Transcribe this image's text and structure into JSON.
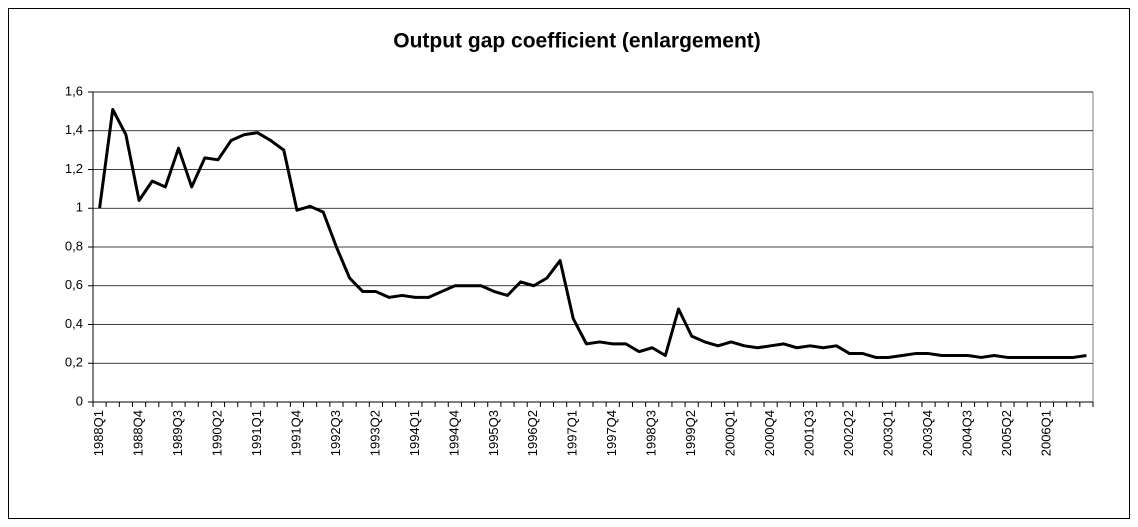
{
  "chart_data": {
    "type": "line",
    "title": "Output gap coefficient (enlargement)",
    "categories": [
      "1988Q1",
      null,
      null,
      "1988Q4",
      null,
      null,
      "1989Q3",
      null,
      null,
      "1990Q2",
      null,
      null,
      "1991Q1",
      null,
      null,
      "1991Q4",
      null,
      null,
      "1992Q3",
      null,
      null,
      "1993Q2",
      null,
      null,
      "1994Q1",
      null,
      null,
      "1994Q4",
      null,
      null,
      "1995Q3",
      null,
      null,
      "1996Q2",
      null,
      null,
      "1997Q1",
      null,
      null,
      "1997Q4",
      null,
      null,
      "1998Q3",
      null,
      null,
      "1999Q2",
      null,
      null,
      "2000Q1",
      null,
      null,
      "2000Q4",
      null,
      null,
      "2001Q3",
      null,
      null,
      "2002Q2",
      null,
      null,
      "2003Q1",
      null,
      null,
      "2003Q4",
      null,
      null,
      "2004Q3",
      null,
      null,
      "2005Q2",
      null,
      null,
      "2006Q1",
      null,
      null,
      null
    ],
    "series": [
      {
        "color": "#000000",
        "values": [
          1.0,
          1.51,
          1.38,
          1.04,
          1.14,
          1.11,
          1.31,
          1.11,
          1.26,
          1.25,
          1.35,
          1.38,
          1.39,
          1.35,
          1.3,
          0.99,
          1.01,
          0.98,
          0.8,
          0.64,
          0.57,
          0.57,
          0.54,
          0.55,
          0.54,
          0.54,
          0.57,
          0.6,
          0.6,
          0.6,
          0.57,
          0.55,
          0.62,
          0.6,
          0.64,
          0.73,
          0.43,
          0.3,
          0.31,
          0.3,
          0.3,
          0.26,
          0.28,
          0.24,
          0.48,
          0.34,
          0.31,
          0.29,
          0.31,
          0.29,
          0.28,
          0.29,
          0.3,
          0.28,
          0.29,
          0.28,
          0.29,
          0.25,
          0.25,
          0.23,
          0.23,
          0.24,
          0.25,
          0.25,
          0.24,
          0.24,
          0.24,
          0.23,
          0.24,
          0.23,
          0.23,
          0.23,
          0.23,
          0.23,
          0.23,
          0.24
        ]
      }
    ],
    "ylim": [
      0,
      1.6
    ],
    "yticks": [
      0,
      {
        "value": 0.2,
        "label": "0,2"
      },
      {
        "value": 0.4,
        "label": "0,4"
      },
      {
        "value": 0.6,
        "label": "0,6"
      },
      {
        "value": 0.8,
        "label": "0,8"
      },
      1,
      {
        "value": 1.2,
        "label": "1,2"
      },
      {
        "value": 1.4,
        "label": "1,4"
      },
      {
        "value": 1.6,
        "label": "1,6"
      }
    ],
    "grid": true
  }
}
